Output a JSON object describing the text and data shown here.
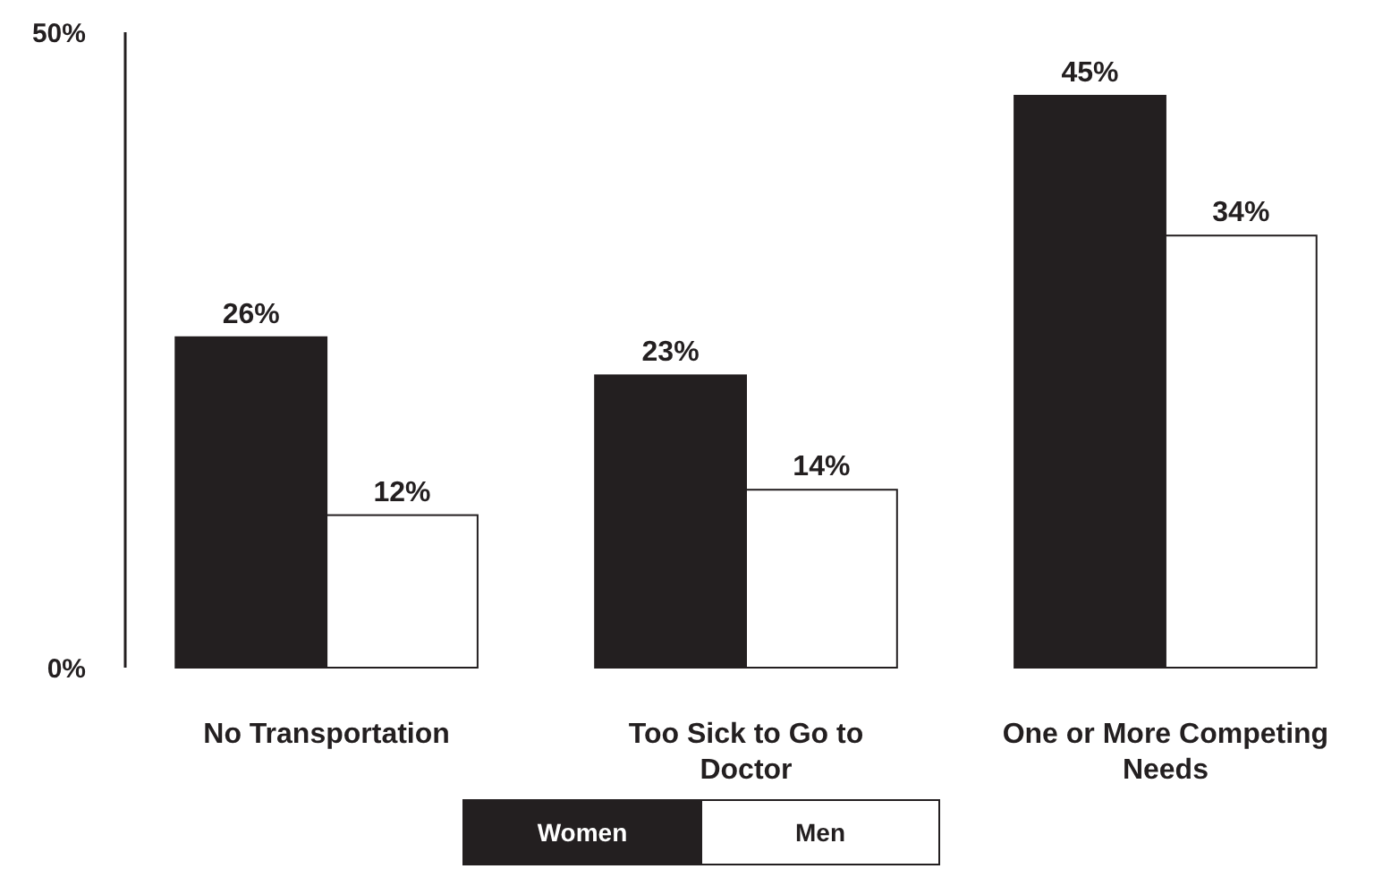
{
  "chart_data": {
    "type": "bar",
    "categories": [
      "No Transportation",
      "Too Sick to Go to Doctor",
      "One or More Competing Needs"
    ],
    "series": [
      {
        "name": "Women",
        "color": "#231f20",
        "values": [
          26,
          23,
          45
        ],
        "value_labels": [
          "26%",
          "23%",
          "45%"
        ]
      },
      {
        "name": "Men",
        "color": "#ffffff",
        "values": [
          12,
          14,
          34
        ],
        "value_labels": [
          "12%",
          "14%",
          "34%"
        ]
      }
    ],
    "ylim": [
      0,
      50
    ],
    "yticks": [
      {
        "value": 0,
        "label": "0%"
      },
      {
        "value": 50,
        "label": "50%"
      }
    ],
    "grid": false,
    "legend": "bottom"
  }
}
